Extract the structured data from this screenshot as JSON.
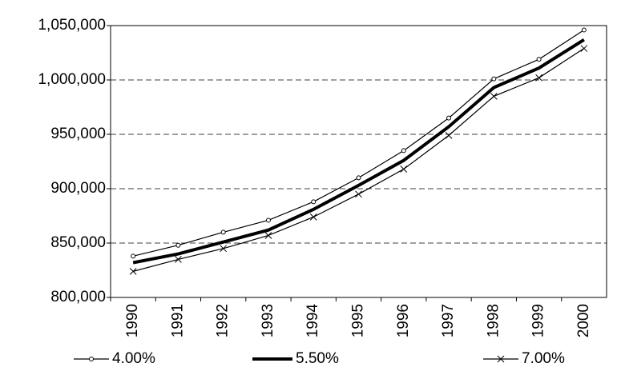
{
  "chart_data": {
    "type": "line",
    "categories": [
      "1990",
      "1991",
      "1992",
      "1993",
      "1994",
      "1995",
      "1996",
      "1997",
      "1998",
      "1999",
      "2000"
    ],
    "series": [
      {
        "name": "4.00%",
        "color": "#000000",
        "line_width": 1.2,
        "marker": "circle",
        "values": [
          838000,
          848000,
          860000,
          871000,
          888000,
          910000,
          935000,
          965000,
          1001000,
          1019000,
          1046000
        ]
      },
      {
        "name": "5.50%",
        "color": "#000000",
        "line_width": 4,
        "marker": "none",
        "values": [
          832000,
          840000,
          851000,
          862000,
          881000,
          903000,
          926000,
          957000,
          993000,
          1011000,
          1037000
        ]
      },
      {
        "name": "7.00%",
        "color": "#000000",
        "line_width": 1.2,
        "marker": "x",
        "values": [
          824000,
          835000,
          845000,
          857000,
          874000,
          895000,
          918000,
          949000,
          985000,
          1002000,
          1029000
        ]
      }
    ],
    "ylim": [
      800000,
      1050000
    ],
    "yticks": [
      {
        "value": 800000,
        "label": "800,000"
      },
      {
        "value": 850000,
        "label": "850,000"
      },
      {
        "value": 900000,
        "label": "900,000"
      },
      {
        "value": 950000,
        "label": "950,000"
      },
      {
        "value": 1000000,
        "label": "1,000,000"
      },
      {
        "value": 1050000,
        "label": "1,050,000"
      }
    ],
    "grid": true,
    "legend": "bottom"
  }
}
